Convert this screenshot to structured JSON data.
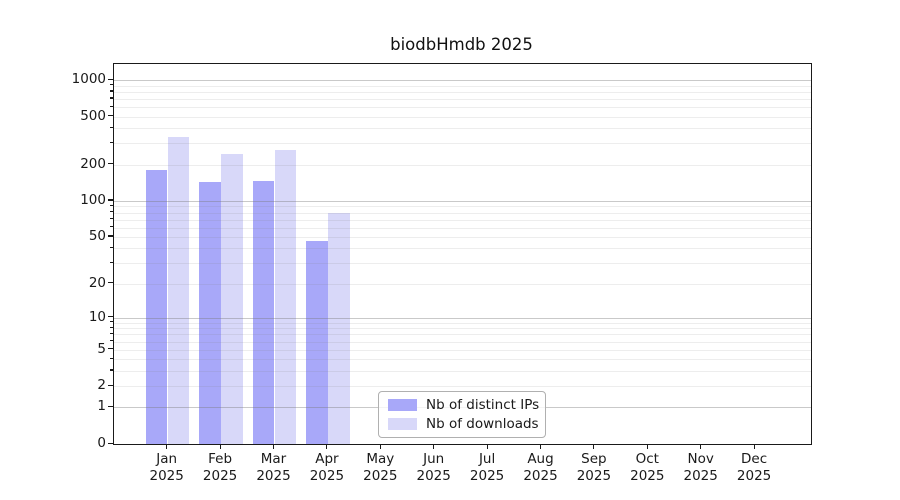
{
  "title": "biodbHmdb 2025",
  "colors": {
    "bar_ips": "#a8a8f9",
    "bar_downloads": "#d8d8f9",
    "spine": "#1a1a1a",
    "grid_major": "#c9c9c9",
    "grid_minor": "#ededed",
    "legend_border": "#b0b0b0",
    "text": "#1a1a1a"
  },
  "chart_data": {
    "type": "bar",
    "title": "biodbHmdb 2025",
    "categories": [
      "Jan 2025",
      "Feb 2025",
      "Mar 2025",
      "Apr 2025",
      "May 2025",
      "Jun 2025",
      "Jul 2025",
      "Aug 2025",
      "Sep 2025",
      "Oct 2025",
      "Nov 2025",
      "Dec 2025"
    ],
    "series": [
      {
        "name": "Nb of distinct IPs",
        "color": "#a8a8f9",
        "values": [
          180,
          145,
          146,
          46,
          0,
          0,
          0,
          0,
          0,
          0,
          0,
          0
        ]
      },
      {
        "name": "Nb of downloads",
        "color": "#d8d8f9",
        "values": [
          340,
          245,
          265,
          80,
          0,
          0,
          0,
          0,
          0,
          0,
          0,
          0
        ]
      }
    ],
    "xlabel": "",
    "ylabel": "",
    "yscale": "log1p",
    "yticks": [
      0,
      1,
      2,
      5,
      10,
      20,
      50,
      100,
      200,
      500,
      1000
    ],
    "ylim": [
      0,
      1360
    ],
    "grid": "both",
    "legend_position": "lower center"
  },
  "legend": {
    "items": [
      {
        "label": "Nb of distinct IPs"
      },
      {
        "label": "Nb of downloads"
      }
    ]
  }
}
